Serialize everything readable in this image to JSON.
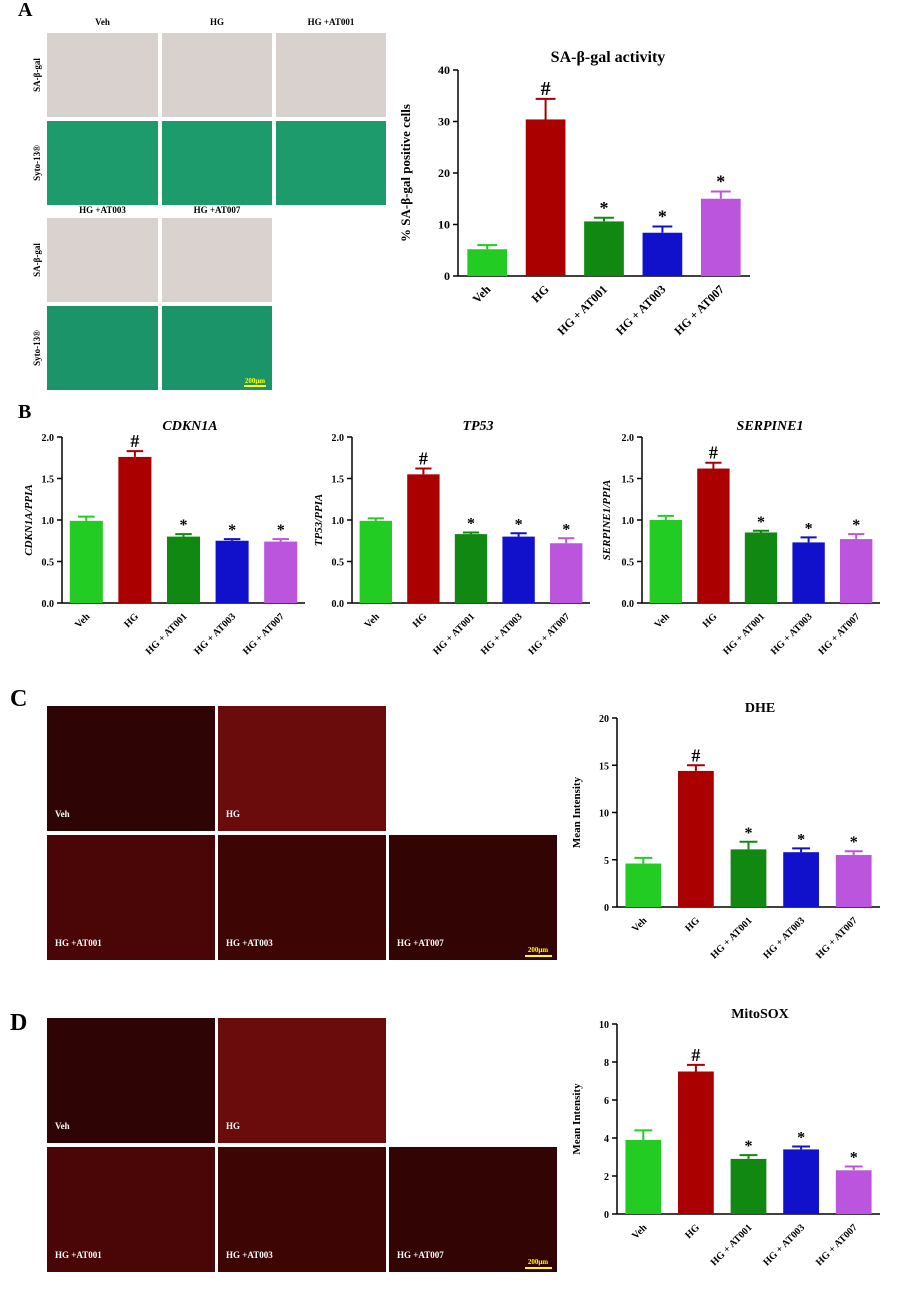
{
  "panel_labels": [
    "A",
    "B",
    "C",
    "D"
  ],
  "panel_a_images": {
    "columns_top": [
      "Veh",
      "HG",
      "HG +AT001"
    ],
    "columns_bottom": [
      "HG +AT003",
      "HG +AT007"
    ],
    "rows_top": [
      "SA-β-gal",
      "Syto-13®"
    ],
    "rows_bottom": [
      "SA-β-gal",
      "Syto-13®"
    ],
    "scale": "200μm"
  },
  "panel_c_images": {
    "labels": [
      "Veh",
      "HG",
      "HG +AT001",
      "HG +AT003",
      "HG +AT007"
    ],
    "scale": "200μm"
  },
  "panel_d_images": {
    "labels": [
      "Veh",
      "HG",
      "HG +AT001",
      "HG +AT003",
      "HG +AT007"
    ],
    "scale": "200μm"
  },
  "chart_data": [
    {
      "type": "bar",
      "title": "SA-β-gal activity",
      "ylabel": "% SA-β-gal positive cells",
      "categories": [
        "Veh",
        "HG",
        "HG + AT001",
        "HG + AT003",
        "HG + AT007"
      ],
      "values": [
        5.2,
        30.4,
        10.6,
        8.4,
        15.0
      ],
      "errors": [
        0.8,
        4.0,
        0.7,
        1.2,
        1.4
      ],
      "annotations": [
        null,
        "#",
        "*",
        "*",
        "*"
      ],
      "colors": [
        "#22cc22",
        "#aa0000",
        "#118811",
        "#1111cc",
        "#bb55dd"
      ],
      "ylim": [
        0,
        40
      ],
      "yticks": [
        0,
        10,
        20,
        30,
        40
      ]
    },
    {
      "type": "bar",
      "title": "CDKN1A",
      "ylabel": "CDKN1A/PPIA",
      "categories": [
        "Veh",
        "HG",
        "HG + AT001",
        "HG + AT003",
        "HG + AT007"
      ],
      "values": [
        0.99,
        1.76,
        0.8,
        0.75,
        0.74
      ],
      "errors": [
        0.05,
        0.07,
        0.03,
        0.02,
        0.03
      ],
      "annotations": [
        null,
        "#",
        "*",
        "*",
        "*"
      ],
      "colors": [
        "#22cc22",
        "#aa0000",
        "#118811",
        "#1111cc",
        "#bb55dd"
      ],
      "ylim": [
        0,
        2
      ],
      "yticks": [
        {
          "value": 0,
          "label": "0.0"
        },
        0.5,
        {
          "value": 1,
          "label": "1.0"
        },
        1.5,
        {
          "value": 2,
          "label": "2.0"
        }
      ]
    },
    {
      "type": "bar",
      "title": "TP53",
      "ylabel": "TP53/PPIA",
      "categories": [
        "Veh",
        "HG",
        "HG + AT001",
        "HG + AT003",
        "HG + AT007"
      ],
      "values": [
        0.99,
        1.55,
        0.83,
        0.8,
        0.72
      ],
      "errors": [
        0.03,
        0.07,
        0.02,
        0.04,
        0.06
      ],
      "annotations": [
        null,
        "#",
        "*",
        "*",
        "*"
      ],
      "colors": [
        "#22cc22",
        "#aa0000",
        "#118811",
        "#1111cc",
        "#bb55dd"
      ],
      "ylim": [
        0,
        2
      ],
      "yticks": [
        {
          "value": 0,
          "label": "0.0"
        },
        0.5,
        {
          "value": 1,
          "label": "1.0"
        },
        1.5,
        {
          "value": 2,
          "label": "2.0"
        }
      ]
    },
    {
      "type": "bar",
      "title": "SERPINE1",
      "ylabel": "SERPINE1/PPIA",
      "categories": [
        "Veh",
        "HG",
        "HG + AT001",
        "HG + AT003",
        "HG + AT007"
      ],
      "values": [
        1.0,
        1.62,
        0.85,
        0.73,
        0.77
      ],
      "errors": [
        0.05,
        0.07,
        0.02,
        0.06,
        0.06
      ],
      "annotations": [
        null,
        "#",
        "*",
        "*",
        "*"
      ],
      "colors": [
        "#22cc22",
        "#aa0000",
        "#118811",
        "#1111cc",
        "#bb55dd"
      ],
      "ylim": [
        0,
        2
      ],
      "yticks": [
        {
          "value": 0,
          "label": "0.0"
        },
        0.5,
        {
          "value": 1,
          "label": "1.0"
        },
        1.5,
        {
          "value": 2,
          "label": "2.0"
        }
      ]
    },
    {
      "type": "bar",
      "title": "DHE",
      "ylabel": "Mean Intensity",
      "categories": [
        "Veh",
        "HG",
        "HG + AT001",
        "HG + AT003",
        "HG + AT007"
      ],
      "values": [
        4.6,
        14.4,
        6.1,
        5.8,
        5.5
      ],
      "errors": [
        0.6,
        0.6,
        0.8,
        0.4,
        0.4
      ],
      "annotations": [
        null,
        "#",
        "*",
        "*",
        "*"
      ],
      "colors": [
        "#22cc22",
        "#aa0000",
        "#118811",
        "#1111cc",
        "#bb55dd"
      ],
      "ylim": [
        0,
        20
      ],
      "yticks": [
        0,
        5,
        10,
        15,
        20
      ]
    },
    {
      "type": "bar",
      "title": "MitoSOX",
      "ylabel": "Mean Intensity",
      "categories": [
        "Veh",
        "HG",
        "HG + AT001",
        "HG + AT003",
        "HG + AT007"
      ],
      "values": [
        3.9,
        7.5,
        2.9,
        3.4,
        2.3
      ],
      "errors": [
        0.5,
        0.35,
        0.2,
        0.15,
        0.2
      ],
      "annotations": [
        null,
        "#",
        "*",
        "*",
        "*"
      ],
      "colors": [
        "#22cc22",
        "#aa0000",
        "#118811",
        "#1111cc",
        "#bb55dd"
      ],
      "ylim": [
        0,
        10
      ],
      "yticks": [
        0,
        2,
        4,
        6,
        8,
        10
      ]
    }
  ]
}
